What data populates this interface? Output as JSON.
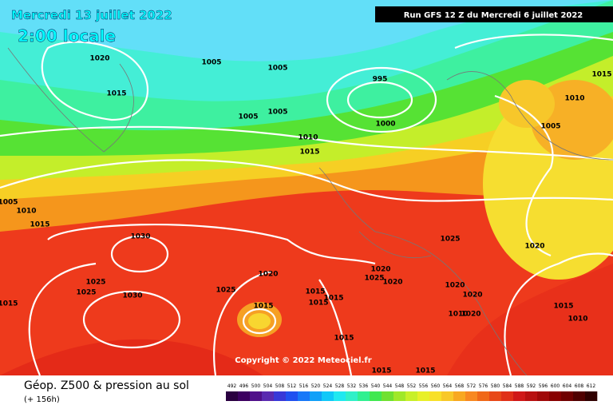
{
  "header": {
    "date": "Mercredi 13 juillet 2022",
    "time": "2:00 locale",
    "run": "Run GFS 12 Z du Mercredi 6 juillet 2022"
  },
  "copyright": "Copyright © 2022 Meteociel.fr",
  "legend": {
    "title": "Géop. Z500 & pression au sol",
    "lead": "(+ 156h)",
    "scale": [
      492,
      496,
      500,
      504,
      508,
      512,
      516,
      520,
      524,
      528,
      532,
      536,
      540,
      544,
      548,
      552,
      556,
      560,
      564,
      568,
      572,
      576,
      580,
      584,
      588,
      592,
      596,
      600,
      604,
      608,
      612
    ]
  },
  "isobars": [
    1020,
    1005,
    1005,
    995,
    1015,
    1005,
    1005,
    1000,
    1010,
    1015,
    1015,
    1010,
    1005,
    1005,
    1010,
    1015,
    1030,
    1025,
    1020,
    1020,
    1020,
    1025,
    1020,
    1025,
    1025,
    1030,
    1025,
    1015,
    1015,
    1015,
    1020,
    1020,
    1015,
    1015,
    1015,
    1010,
    1010,
    1020,
    1015,
    1015,
    1015
  ]
}
